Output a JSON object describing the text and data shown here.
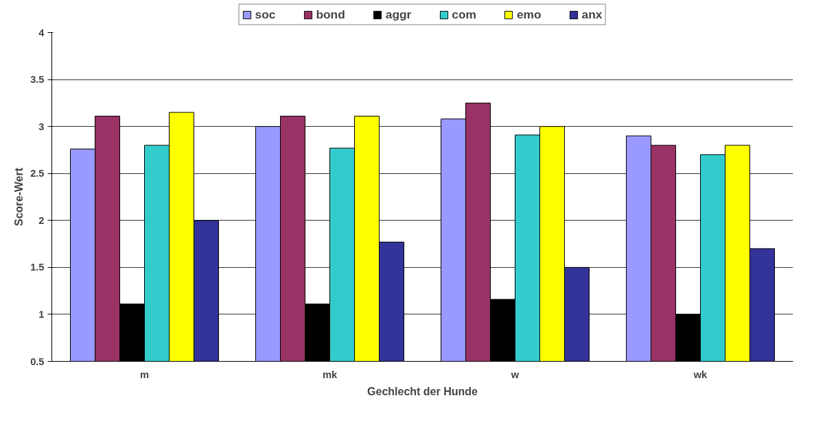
{
  "chart_data": {
    "type": "bar",
    "xlabel": "Gechlecht der Hunde",
    "ylabel": "Score-Wert",
    "categories": [
      "m",
      "mk",
      "w",
      "wk"
    ],
    "series": [
      {
        "name": "soc",
        "color": "#9999ff",
        "values": [
          2.76,
          3.0,
          3.08,
          2.9
        ]
      },
      {
        "name": "bond",
        "color": "#993366",
        "values": [
          3.11,
          3.11,
          3.25,
          2.8
        ]
      },
      {
        "name": "aggr",
        "color": "#000000",
        "values": [
          1.11,
          1.11,
          1.16,
          1.0
        ]
      },
      {
        "name": "com",
        "color": "#33cccc",
        "values": [
          2.8,
          2.77,
          2.91,
          2.7
        ]
      },
      {
        "name": "emo",
        "color": "#ffff00",
        "values": [
          3.15,
          3.11,
          3.0,
          2.8
        ]
      },
      {
        "name": "anx",
        "color": "#333399",
        "values": [
          2.0,
          1.77,
          1.5,
          1.7
        ]
      }
    ],
    "ylim": [
      0.5,
      4
    ],
    "yticks": [
      0.5,
      1,
      1.5,
      2,
      2.5,
      3,
      3.5,
      4
    ],
    "grid": "y",
    "legend": "top"
  }
}
